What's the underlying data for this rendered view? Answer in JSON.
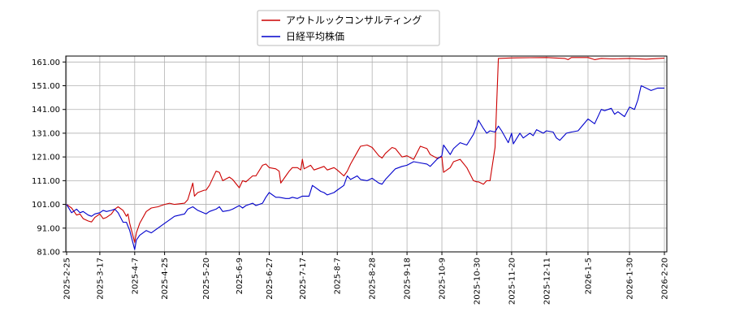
{
  "chart_data": {
    "type": "line",
    "title": "",
    "xlabel": "",
    "ylabel": "",
    "ylim": [
      81.0,
      163.5
    ],
    "grid": true,
    "legend_position": "top-center",
    "y_ticks": [
      "81.00",
      "91.00",
      "101.00",
      "111.00",
      "121.00",
      "131.00",
      "141.00",
      "151.00",
      "161.00"
    ],
    "x_ticks": [
      "2025-2-25",
      "2025-3-17",
      "2025-4-7",
      "2025-4-25",
      "2025-5-20",
      "2025-6-9",
      "2025-6-27",
      "2025-7-17",
      "2025-8-7",
      "2025-8-28",
      "2025-9-18",
      "2025-10-9",
      "2025-10-30",
      "2025-11-20",
      "2025-12-11",
      "2026-1-5",
      "2026-1-30",
      "2026-2-20"
    ],
    "series": [
      {
        "name": "アウトルックコンサルティング",
        "color": "#cc0000",
        "points": [
          [
            "2025-2-25",
            101.0
          ],
          [
            "2025-2-28",
            99.5
          ],
          [
            "2025-3-3",
            96.5
          ],
          [
            "2025-3-5",
            97.0
          ],
          [
            "2025-3-7",
            95.0
          ],
          [
            "2025-3-10",
            94.0
          ],
          [
            "2025-3-12",
            93.6
          ],
          [
            "2025-3-14",
            95.5
          ],
          [
            "2025-3-17",
            97.0
          ],
          [
            "2025-3-19",
            95.0
          ],
          [
            "2025-3-21",
            95.5
          ],
          [
            "2025-3-24",
            97.0
          ],
          [
            "2025-3-26",
            99.0
          ],
          [
            "2025-3-28",
            100.0
          ],
          [
            "2025-3-31",
            98.5
          ],
          [
            "2025-4-2",
            96.0
          ],
          [
            "2025-4-3",
            97.0
          ],
          [
            "2025-4-4",
            93.0
          ],
          [
            "2025-4-7",
            85.0
          ],
          [
            "2025-4-8",
            89.0
          ],
          [
            "2025-4-10",
            93.0
          ],
          [
            "2025-4-14",
            98.0
          ],
          [
            "2025-4-17",
            99.5
          ],
          [
            "2025-4-21",
            100.0
          ],
          [
            "2025-4-23",
            100.5
          ],
          [
            "2025-4-25",
            101.0
          ],
          [
            "2025-4-28",
            101.5
          ],
          [
            "2025-5-1",
            101.0
          ],
          [
            "2025-5-7",
            101.5
          ],
          [
            "2025-5-9",
            103.0
          ],
          [
            "2025-5-12",
            110.0
          ],
          [
            "2025-5-13",
            104.5
          ],
          [
            "2025-5-15",
            106.0
          ],
          [
            "2025-5-19",
            107.0
          ],
          [
            "2025-5-20",
            107.0
          ],
          [
            "2025-5-22",
            109.0
          ],
          [
            "2025-5-26",
            115.0
          ],
          [
            "2025-5-28",
            114.5
          ],
          [
            "2025-5-30",
            111.0
          ],
          [
            "2025-6-3",
            112.5
          ],
          [
            "2025-6-5",
            111.5
          ],
          [
            "2025-6-9",
            108.0
          ],
          [
            "2025-6-11",
            111.0
          ],
          [
            "2025-6-13",
            110.5
          ],
          [
            "2025-6-17",
            113.0
          ],
          [
            "2025-6-19",
            113.0
          ],
          [
            "2025-6-23",
            117.5
          ],
          [
            "2025-6-25",
            118.0
          ],
          [
            "2025-6-27",
            116.5
          ],
          [
            "2025-7-1",
            116.0
          ],
          [
            "2025-7-3",
            115.0
          ],
          [
            "2025-7-4",
            110.0
          ],
          [
            "2025-7-7",
            113.0
          ],
          [
            "2025-7-9",
            115.0
          ],
          [
            "2025-7-11",
            116.5
          ],
          [
            "2025-7-14",
            116.5
          ],
          [
            "2025-7-16",
            115.5
          ],
          [
            "2025-7-17",
            120.0
          ],
          [
            "2025-7-18",
            116.0
          ],
          [
            "2025-7-22",
            117.5
          ],
          [
            "2025-7-24",
            115.5
          ],
          [
            "2025-7-28",
            116.5
          ],
          [
            "2025-7-30",
            117.0
          ],
          [
            "2025-8-1",
            115.5
          ],
          [
            "2025-8-5",
            116.5
          ],
          [
            "2025-8-7",
            115.5
          ],
          [
            "2025-8-11",
            113.0
          ],
          [
            "2025-8-13",
            115.0
          ],
          [
            "2025-8-15",
            118.0
          ],
          [
            "2025-8-19",
            123.0
          ],
          [
            "2025-8-21",
            125.5
          ],
          [
            "2025-8-25",
            126.0
          ],
          [
            "2025-8-28",
            125.0
          ],
          [
            "2025-9-1",
            121.5
          ],
          [
            "2025-9-3",
            120.5
          ],
          [
            "2025-9-5",
            122.5
          ],
          [
            "2025-9-9",
            125.0
          ],
          [
            "2025-9-11",
            124.5
          ],
          [
            "2025-9-15",
            121.0
          ],
          [
            "2025-9-18",
            121.5
          ],
          [
            "2025-9-22",
            120.0
          ],
          [
            "2025-9-26",
            125.5
          ],
          [
            "2025-9-30",
            124.5
          ],
          [
            "2025-10-2",
            122.0
          ],
          [
            "2025-10-6",
            120.5
          ],
          [
            "2025-10-9",
            121.0
          ],
          [
            "2025-10-10",
            114.5
          ],
          [
            "2025-10-14",
            116.5
          ],
          [
            "2025-10-16",
            119.0
          ],
          [
            "2025-10-20",
            120.0
          ],
          [
            "2025-10-24",
            116.5
          ],
          [
            "2025-10-28",
            111.0
          ],
          [
            "2025-10-30",
            110.5
          ],
          [
            "2025-10-31",
            110.5
          ],
          [
            "2025-11-3",
            109.5
          ],
          [
            "2025-11-5",
            111.0
          ],
          [
            "2025-11-7",
            111.0
          ],
          [
            "2025-11-10",
            125.0
          ],
          [
            "2025-11-12",
            162.5
          ],
          [
            "2025-11-20",
            162.7
          ],
          [
            "2025-12-1",
            162.8
          ],
          [
            "2025-12-11",
            162.9
          ],
          [
            "2025-12-22",
            162.5
          ],
          [
            "2025-12-24",
            162.0
          ],
          [
            "2025-12-26",
            162.9
          ],
          [
            "2026-1-5",
            162.9
          ],
          [
            "2026-1-9",
            162.0
          ],
          [
            "2026-1-13",
            162.5
          ],
          [
            "2026-1-20",
            162.3
          ],
          [
            "2026-1-30",
            162.5
          ],
          [
            "2026-2-9",
            162.2
          ],
          [
            "2026-2-20",
            162.6
          ]
        ]
      },
      {
        "name": "日経平均株価",
        "color": "#0000cc",
        "points": [
          [
            "2025-2-25",
            101.0
          ],
          [
            "2025-2-28",
            97.5
          ],
          [
            "2025-3-3",
            99.0
          ],
          [
            "2025-3-5",
            97.5
          ],
          [
            "2025-3-7",
            98.0
          ],
          [
            "2025-3-10",
            96.5
          ],
          [
            "2025-3-12",
            96.0
          ],
          [
            "2025-3-14",
            97.0
          ],
          [
            "2025-3-17",
            97.5
          ],
          [
            "2025-3-19",
            98.5
          ],
          [
            "2025-3-21",
            98.0
          ],
          [
            "2025-3-24",
            98.5
          ],
          [
            "2025-3-26",
            99.0
          ],
          [
            "2025-3-28",
            97.5
          ],
          [
            "2025-3-31",
            93.5
          ],
          [
            "2025-4-2",
            93.5
          ],
          [
            "2025-4-4",
            90.0
          ],
          [
            "2025-4-7",
            82.0
          ],
          [
            "2025-4-8",
            86.0
          ],
          [
            "2025-4-10",
            88.0
          ],
          [
            "2025-4-14",
            90.0
          ],
          [
            "2025-4-17",
            89.0
          ],
          [
            "2025-4-21",
            91.0
          ],
          [
            "2025-4-25",
            93.0
          ],
          [
            "2025-4-28",
            94.5
          ],
          [
            "2025-5-1",
            96.0
          ],
          [
            "2025-5-7",
            97.0
          ],
          [
            "2025-5-9",
            99.0
          ],
          [
            "2025-5-12",
            100.0
          ],
          [
            "2025-5-15",
            98.5
          ],
          [
            "2025-5-20",
            97.0
          ],
          [
            "2025-5-22",
            98.0
          ],
          [
            "2025-5-26",
            99.0
          ],
          [
            "2025-5-28",
            100.0
          ],
          [
            "2025-5-30",
            98.0
          ],
          [
            "2025-6-3",
            98.5
          ],
          [
            "2025-6-5",
            99.0
          ],
          [
            "2025-6-9",
            100.5
          ],
          [
            "2025-6-11",
            99.5
          ],
          [
            "2025-6-13",
            100.5
          ],
          [
            "2025-6-17",
            101.5
          ],
          [
            "2025-6-19",
            100.5
          ],
          [
            "2025-6-23",
            101.5
          ],
          [
            "2025-6-25",
            104.0
          ],
          [
            "2025-6-27",
            106.0
          ],
          [
            "2025-7-1",
            104.0
          ],
          [
            "2025-7-3",
            104.0
          ],
          [
            "2025-7-7",
            103.5
          ],
          [
            "2025-7-9",
            103.5
          ],
          [
            "2025-7-11",
            104.0
          ],
          [
            "2025-7-14",
            103.5
          ],
          [
            "2025-7-17",
            104.5
          ],
          [
            "2025-7-21",
            104.5
          ],
          [
            "2025-7-23",
            109.0
          ],
          [
            "2025-7-25",
            108.0
          ],
          [
            "2025-7-28",
            106.5
          ],
          [
            "2025-7-30",
            106.0
          ],
          [
            "2025-8-1",
            105.0
          ],
          [
            "2025-8-5",
            106.0
          ],
          [
            "2025-8-7",
            107.0
          ],
          [
            "2025-8-11",
            109.0
          ],
          [
            "2025-8-13",
            113.0
          ],
          [
            "2025-8-15",
            111.5
          ],
          [
            "2025-8-19",
            113.0
          ],
          [
            "2025-8-21",
            111.5
          ],
          [
            "2025-8-25",
            111.0
          ],
          [
            "2025-8-28",
            112.0
          ],
          [
            "2025-9-1",
            110.0
          ],
          [
            "2025-9-3",
            109.5
          ],
          [
            "2025-9-5",
            111.5
          ],
          [
            "2025-9-9",
            114.5
          ],
          [
            "2025-9-11",
            116.0
          ],
          [
            "2025-9-15",
            117.0
          ],
          [
            "2025-9-18",
            117.5
          ],
          [
            "2025-9-22",
            119.0
          ],
          [
            "2025-9-26",
            118.5
          ],
          [
            "2025-9-30",
            118.0
          ],
          [
            "2025-10-2",
            117.0
          ],
          [
            "2025-10-6",
            120.0
          ],
          [
            "2025-10-9",
            121.5
          ],
          [
            "2025-10-10",
            126.0
          ],
          [
            "2025-10-14",
            122.0
          ],
          [
            "2025-10-16",
            124.5
          ],
          [
            "2025-10-20",
            127.0
          ],
          [
            "2025-10-24",
            126.0
          ],
          [
            "2025-10-28",
            130.5
          ],
          [
            "2025-10-30",
            134.0
          ],
          [
            "2025-10-31",
            136.5
          ],
          [
            "2025-11-3",
            133.0
          ],
          [
            "2025-11-5",
            131.0
          ],
          [
            "2025-11-7",
            132.0
          ],
          [
            "2025-11-10",
            131.5
          ],
          [
            "2025-11-12",
            134.0
          ],
          [
            "2025-11-14",
            132.0
          ],
          [
            "2025-11-18",
            127.0
          ],
          [
            "2025-11-20",
            131.0
          ],
          [
            "2025-11-21",
            126.5
          ],
          [
            "2025-11-25",
            131.0
          ],
          [
            "2025-11-27",
            129.0
          ],
          [
            "2025-12-1",
            131.0
          ],
          [
            "2025-12-3",
            130.0
          ],
          [
            "2025-12-5",
            132.5
          ],
          [
            "2025-12-9",
            131.0
          ],
          [
            "2025-12-11",
            132.0
          ],
          [
            "2025-12-15",
            131.5
          ],
          [
            "2025-12-17",
            129.0
          ],
          [
            "2025-12-19",
            128.0
          ],
          [
            "2025-12-23",
            131.0
          ],
          [
            "2025-12-26",
            131.5
          ],
          [
            "2025-12-30",
            132.0
          ],
          [
            "2026-1-5",
            137.0
          ],
          [
            "2026-1-7",
            136.0
          ],
          [
            "2026-1-9",
            135.0
          ],
          [
            "2026-1-13",
            141.0
          ],
          [
            "2026-1-15",
            140.5
          ],
          [
            "2026-1-19",
            141.5
          ],
          [
            "2026-1-21",
            139.0
          ],
          [
            "2026-1-23",
            140.0
          ],
          [
            "2026-1-27",
            138.0
          ],
          [
            "2026-1-30",
            142.0
          ],
          [
            "2026-2-2",
            141.0
          ],
          [
            "2026-2-4",
            145.0
          ],
          [
            "2026-2-6",
            151.0
          ],
          [
            "2026-2-9",
            150.0
          ],
          [
            "2026-2-12",
            149.0
          ],
          [
            "2026-2-16",
            150.0
          ],
          [
            "2026-2-20",
            150.0
          ]
        ]
      }
    ]
  }
}
